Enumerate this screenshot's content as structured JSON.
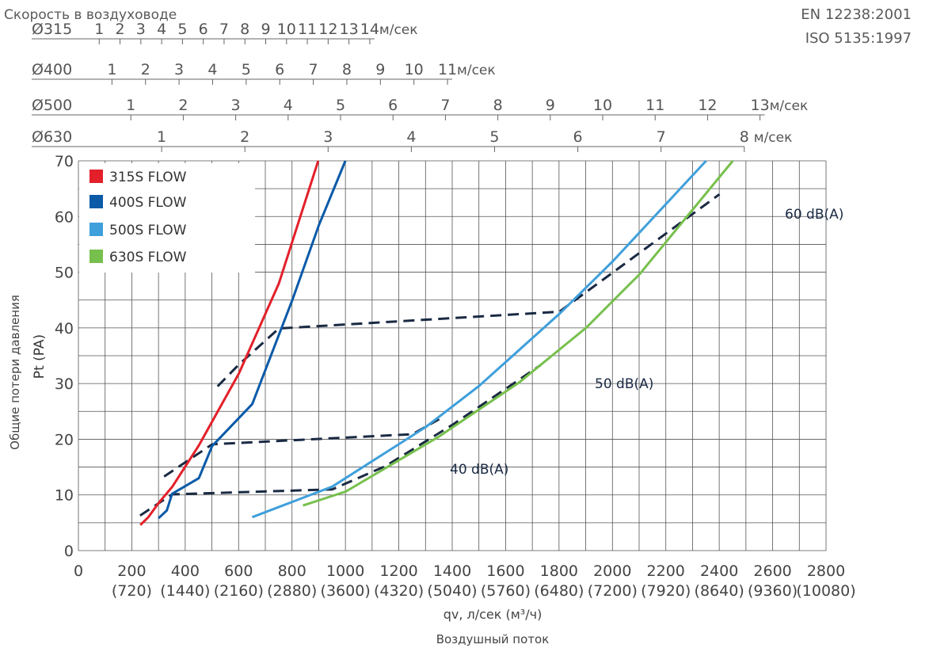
{
  "standards": [
    "EN 12238:2001",
    "ISO 5135:1997"
  ],
  "velocity": {
    "title": "Скорость в воздуховоде",
    "unit": "м/сек",
    "scales": [
      {
        "label": "Ø315",
        "m3h_per_ms": 280.6,
        "ticks": [
          1,
          2,
          3,
          4,
          5,
          6,
          7,
          8,
          9,
          10,
          11,
          12,
          13,
          14
        ]
      },
      {
        "label": "Ø400",
        "m3h_per_ms": 452.4,
        "ticks": [
          1,
          2,
          3,
          4,
          5,
          6,
          7,
          8,
          9,
          10,
          11
        ]
      },
      {
        "label": "Ø500",
        "m3h_per_ms": 706.9,
        "ticks": [
          1,
          2,
          3,
          4,
          5,
          6,
          7,
          8,
          9,
          10,
          11,
          12,
          13
        ]
      },
      {
        "label": "Ø630",
        "m3h_per_ms": 1122.2,
        "ticks": [
          1,
          2,
          3,
          4,
          5,
          6,
          7,
          8
        ]
      }
    ]
  },
  "chart_data": {
    "type": "line",
    "xlabel": "qv, л/сек (м³/ч)",
    "xlabel_secondary": "Воздушный поток",
    "ylabel": "Общие потери давления",
    "ylabel_secondary": "Pt (PA)",
    "xlim": [
      0,
      2800
    ],
    "ylim": [
      0,
      70
    ],
    "x_ticks": [
      {
        "value": 0,
        "label": "0",
        "sub": ""
      },
      {
        "value": 200,
        "label": "200",
        "sub": "(720)"
      },
      {
        "value": 400,
        "label": "400",
        "sub": "(1440)"
      },
      {
        "value": 600,
        "label": "600",
        "sub": "(2160)"
      },
      {
        "value": 800,
        "label": "800",
        "sub": "(2880)"
      },
      {
        "value": 1000,
        "label": "1000",
        "sub": "(3600)"
      },
      {
        "value": 1200,
        "label": "1200",
        "sub": "(4320)"
      },
      {
        "value": 1400,
        "label": "1400",
        "sub": "(5040)"
      },
      {
        "value": 1600,
        "label": "1600",
        "sub": "(5760)"
      },
      {
        "value": 1800,
        "label": "1800",
        "sub": "(6480)"
      },
      {
        "value": 2000,
        "label": "2000",
        "sub": "(7200)"
      },
      {
        "value": 2200,
        "label": "2200",
        "sub": "(7920)"
      },
      {
        "value": 2400,
        "label": "2400",
        "sub": "(8640)"
      },
      {
        "value": 2600,
        "label": "2600",
        "sub": "(9360)"
      },
      {
        "value": 2800,
        "label": "2800",
        "sub": "(10080)"
      }
    ],
    "y_ticks": [
      0,
      10,
      20,
      30,
      40,
      50,
      60,
      70
    ],
    "grid": true,
    "legend_position": "top-left",
    "series": [
      {
        "name": "315S FLOW",
        "color": "#e3202a",
        "points": [
          [
            232,
            4.6
          ],
          [
            262,
            6
          ],
          [
            301,
            8.6
          ],
          [
            352,
            11.5
          ],
          [
            451,
            18.9
          ],
          [
            601,
            31.8
          ],
          [
            751,
            48
          ],
          [
            898,
            70
          ]
        ]
      },
      {
        "name": "400S FLOW",
        "color": "#0a5aa8",
        "points": [
          [
            300,
            5.8
          ],
          [
            331,
            7.2
          ],
          [
            351,
            10.2
          ],
          [
            451,
            13
          ],
          [
            501,
            18.8
          ],
          [
            651,
            26.3
          ],
          [
            801,
            45
          ],
          [
            901,
            58.5
          ],
          [
            1000,
            70
          ]
        ]
      },
      {
        "name": "500S FLOW",
        "color": "#3f9fdb",
        "points": [
          [
            651,
            6
          ],
          [
            951,
            11.5
          ],
          [
            1301,
            22.2
          ],
          [
            1501,
            29.6
          ],
          [
            1801,
            42.5
          ],
          [
            2002,
            52
          ],
          [
            2351,
            70
          ]
        ]
      },
      {
        "name": "630S FLOW",
        "color": "#77c04d",
        "points": [
          [
            841,
            8.1
          ],
          [
            1001,
            10.6
          ],
          [
            1351,
            20.5
          ],
          [
            1651,
            30.2
          ],
          [
            1901,
            40
          ],
          [
            2101,
            49.6
          ],
          [
            2451,
            70
          ]
        ]
      }
    ],
    "sound_levels": [
      {
        "label": "40 dB(A)",
        "points": [
          [
            231,
            6.3
          ],
          [
            351,
            10.1
          ],
          [
            951,
            11
          ],
          [
            1151,
            15.2
          ],
          [
            1401,
            22.6
          ],
          [
            1731,
            33.3
          ]
        ]
      },
      {
        "label": "50 dB(A)",
        "points": [
          [
            321,
            13.3
          ],
          [
            501,
            19.1
          ],
          [
            1251,
            20.9
          ],
          [
            1351,
            23.6
          ]
        ]
      },
      {
        "label": "60 dB(A)",
        "points": [
          [
            521,
            29.5
          ],
          [
            601,
            33.4
          ],
          [
            751,
            39.9
          ],
          [
            1801,
            42.9
          ],
          [
            2401,
            64
          ]
        ]
      }
    ]
  }
}
